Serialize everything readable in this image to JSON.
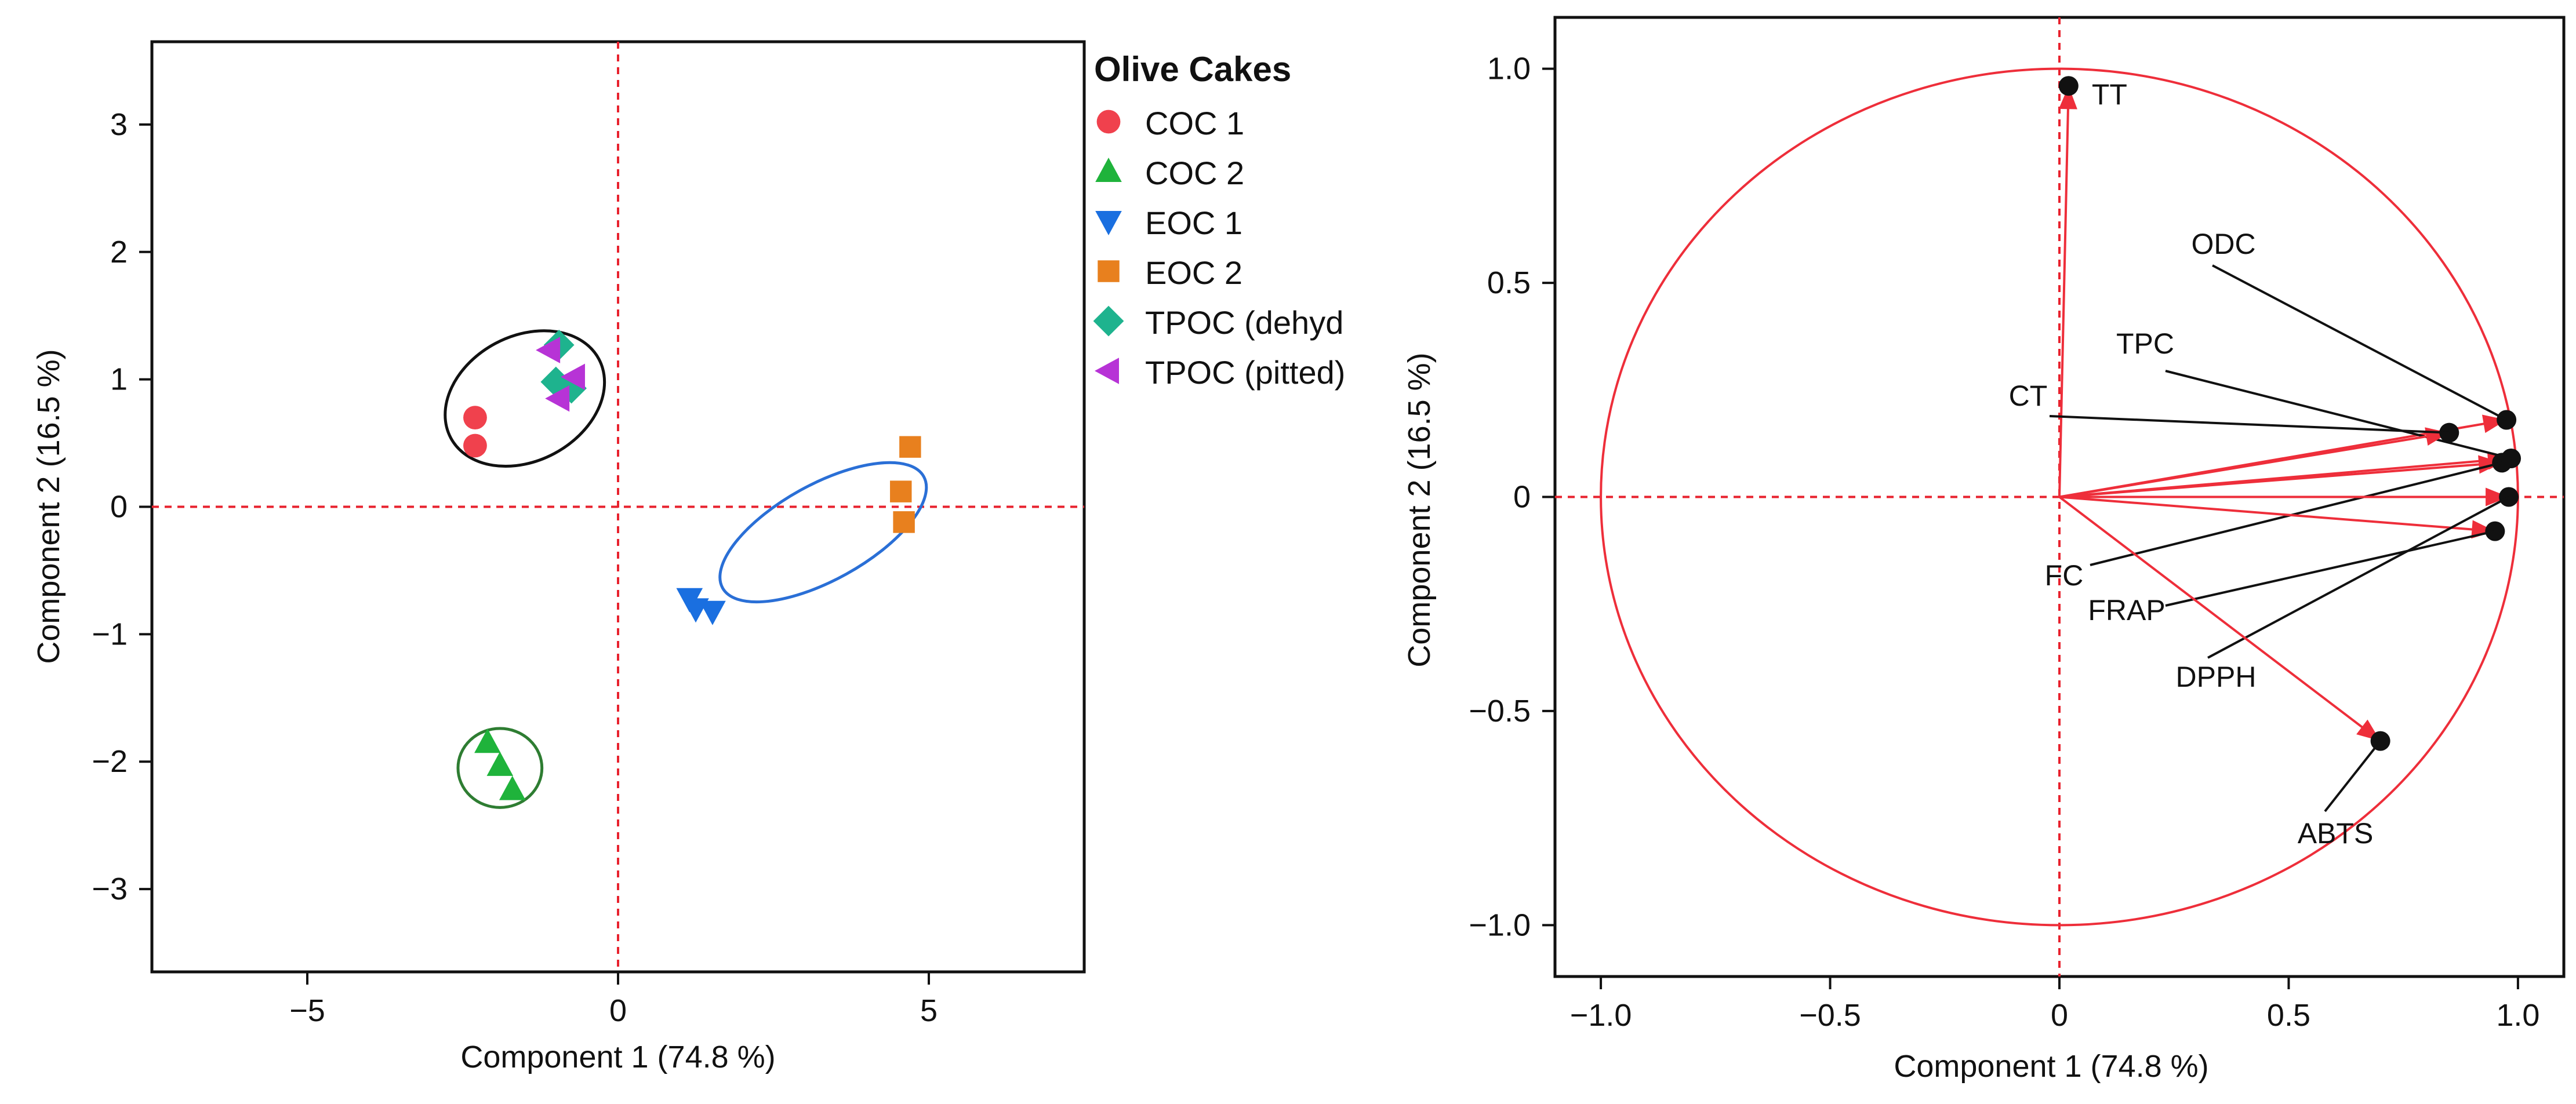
{
  "chart_data": [
    {
      "type": "scatter",
      "xlabel": "Component 1  (74.8 %)",
      "ylabel": "Component 2  (16.5 %)",
      "xlim": [
        -7.5,
        7.5
      ],
      "ylim": [
        -3.65,
        3.65
      ],
      "xticks": [
        -5,
        0,
        5
      ],
      "xtick_labels": [
        "−5",
        "0",
        "5"
      ],
      "yticks": [
        -3,
        -2,
        -1,
        0,
        1,
        2,
        3
      ],
      "ytick_labels": [
        "−3",
        "−2",
        "−1",
        "0",
        "1",
        "2",
        "3"
      ],
      "grid": false,
      "reference_lines": {
        "x": 0,
        "y": 0,
        "color": "#e8222e",
        "style": "dashed"
      },
      "legend": {
        "title": "Olive Cakes",
        "placement": "right",
        "entries": [
          {
            "label": "COC 1",
            "marker": "circle",
            "color": "#f0414d"
          },
          {
            "label": "COC 2",
            "marker": "triangle-up",
            "color": "#1fb33b"
          },
          {
            "label": "EOC 1",
            "marker": "triangle-down",
            "color": "#1a6fe0"
          },
          {
            "label": "EOC 2",
            "marker": "square",
            "color": "#e8801e"
          },
          {
            "label": "TPOC (dehyd",
            "marker": "diamond",
            "color": "#1eb38e"
          },
          {
            "label": "TPOC (pitted)",
            "marker": "triangle-left",
            "color": "#b733d6"
          }
        ]
      },
      "series": [
        {
          "name": "COC 1",
          "points": [
            [
              -2.3,
              0.7
            ],
            [
              -2.3,
              0.48
            ]
          ]
        },
        {
          "name": "COC 2",
          "points": [
            [
              -2.1,
              -1.85
            ],
            [
              -1.9,
              -2.03
            ],
            [
              -1.7,
              -2.22
            ]
          ]
        },
        {
          "name": "EOC 1",
          "points": [
            [
              1.15,
              -0.72
            ],
            [
              1.25,
              -0.8
            ],
            [
              1.52,
              -0.82
            ]
          ]
        },
        {
          "name": "EOC 2",
          "points": [
            [
              4.7,
              0.47
            ],
            [
              4.55,
              0.12
            ],
            [
              4.6,
              -0.12
            ]
          ]
        },
        {
          "name": "TPOC (dehyd",
          "points": [
            [
              -0.95,
              1.27
            ],
            [
              -1.0,
              0.98
            ],
            [
              -0.75,
              0.93
            ]
          ]
        },
        {
          "name": "TPOC (pitted)",
          "points": [
            [
              -1.1,
              1.23
            ],
            [
              -0.7,
              1.02
            ],
            [
              -0.95,
              0.85
            ]
          ]
        }
      ],
      "ellipses": [
        {
          "group": "COC 1 / TPOC",
          "color": "#111111",
          "center": [
            -1.5,
            0.85
          ],
          "semi_axes": [
            2.7,
            0.98
          ],
          "angle_deg": 28
        },
        {
          "group": "EOC",
          "color": "#2a6fd6",
          "center": [
            3.3,
            -0.2
          ],
          "semi_axes": [
            3.7,
            0.75
          ],
          "angle_deg": 29
        },
        {
          "group": "COC 2",
          "color": "#2e7d32",
          "center": [
            -1.9,
            -2.05
          ],
          "semi_axes": [
            1.35,
            0.62
          ],
          "angle_deg": 0
        }
      ]
    },
    {
      "type": "scatter",
      "subtype": "loading-plot",
      "xlabel": "Component 1  (74.8 %)",
      "ylabel": "Component 2  (16.5 %)",
      "xlim": [
        -1.1,
        1.1
      ],
      "ylim": [
        -1.12,
        1.12
      ],
      "xticks": [
        -1.0,
        -0.5,
        0,
        0.5,
        1.0
      ],
      "xtick_labels": [
        "−1.0",
        "−0.5",
        "0",
        "0.5",
        "1.0"
      ],
      "yticks": [
        -1.0,
        -0.5,
        0,
        0.5,
        1.0
      ],
      "ytick_labels": [
        "−1.0",
        "−0.5",
        "0",
        "0.5",
        "1.0"
      ],
      "grid": false,
      "unit_circle": true,
      "arrow_color": "#ee2e3a",
      "reference_lines": {
        "x": 0,
        "y": 0,
        "color": "#e8222e",
        "style": "dashed"
      },
      "variables": [
        {
          "name": "TT",
          "x": 0.02,
          "y": 0.96
        },
        {
          "name": "ODC",
          "x": 0.975,
          "y": 0.18
        },
        {
          "name": "TPC",
          "x": 0.985,
          "y": 0.09
        },
        {
          "name": "CT",
          "x": 0.85,
          "y": 0.15
        },
        {
          "name": "FC",
          "x": 0.965,
          "y": 0.08
        },
        {
          "name": "FRAP",
          "x": 0.95,
          "y": -0.08
        },
        {
          "name": "DPPH",
          "x": 0.98,
          "y": 0.0
        },
        {
          "name": "ABTS",
          "x": 0.7,
          "y": -0.57
        }
      ]
    }
  ]
}
